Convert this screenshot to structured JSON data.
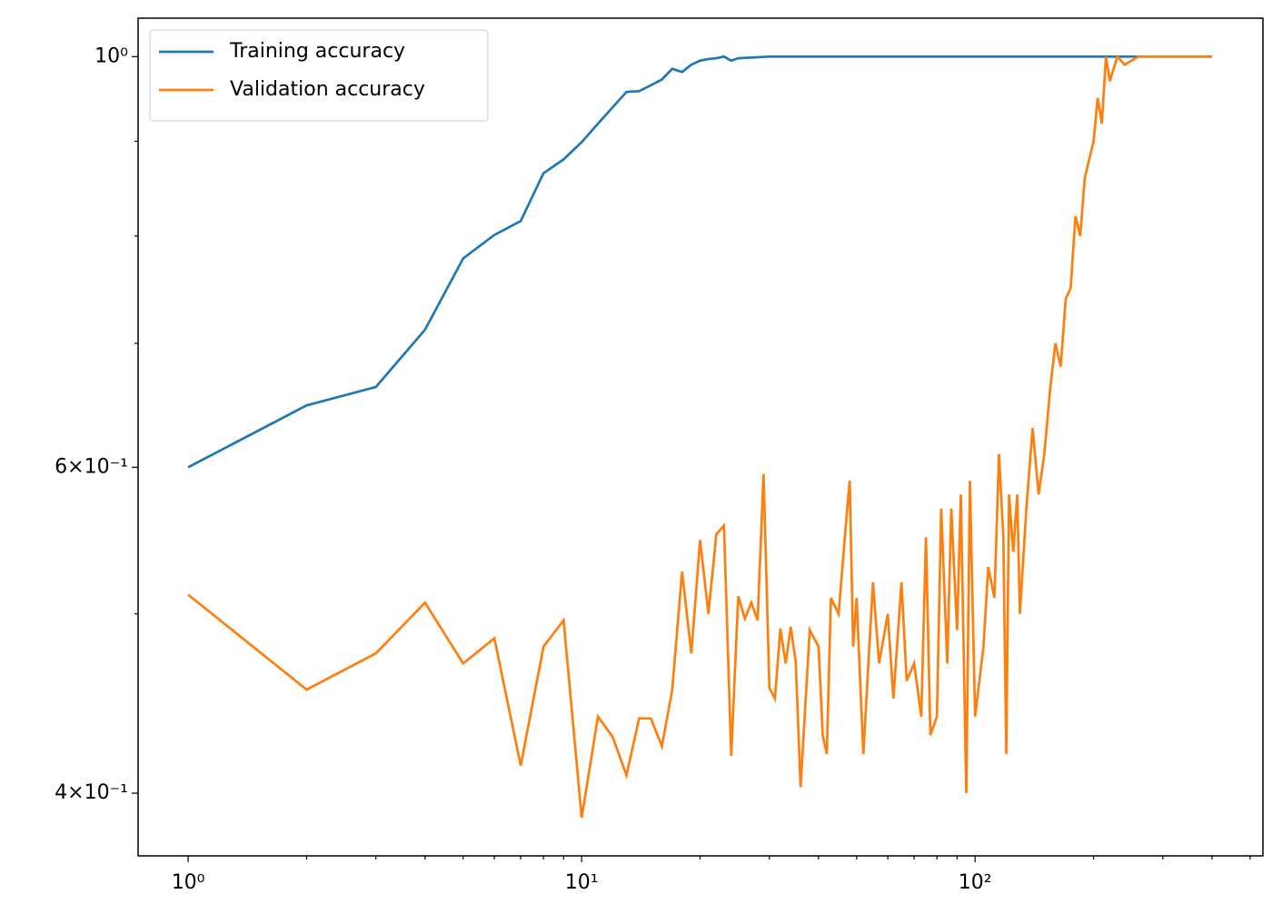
{
  "chart_data": {
    "type": "line",
    "log_x": true,
    "log_y": true,
    "legend": "upper left",
    "xlim": [
      0.746,
      539
    ],
    "ylim": [
      0.37,
      1.049
    ],
    "xticks": [
      {
        "value": 1,
        "label": "10⁰"
      },
      {
        "value": 10,
        "label": "10¹"
      },
      {
        "value": 100,
        "label": "10²"
      }
    ],
    "xminorticks": [
      2,
      3,
      4,
      5,
      6,
      7,
      8,
      9,
      20,
      30,
      40,
      50,
      60,
      70,
      80,
      90,
      200,
      300,
      400,
      500
    ],
    "yticks": [
      {
        "value": 0.4,
        "label": "4×10⁻¹"
      },
      {
        "value": 0.6,
        "label": "6×10⁻¹"
      },
      {
        "value": 1,
        "label": "10⁰"
      }
    ],
    "yminorticks": [
      0.5,
      0.7,
      0.8,
      0.9
    ],
    "series": [
      {
        "name": "Training accuracy",
        "color": "#1f77b4",
        "x": [
          1,
          2,
          3,
          4,
          5,
          6,
          7,
          8,
          9,
          10,
          11,
          12,
          13,
          14,
          15,
          16,
          17,
          18,
          19,
          20,
          21,
          22,
          23,
          24,
          25,
          30,
          50,
          100,
          200,
          400
        ],
        "values": [
          0.6,
          0.648,
          0.663,
          0.712,
          0.778,
          0.801,
          0.815,
          0.865,
          0.88,
          0.899,
          0.92,
          0.939,
          0.957,
          0.958,
          0.965,
          0.972,
          0.985,
          0.981,
          0.99,
          0.995,
          0.997,
          0.998,
          1,
          0.995,
          0.998,
          1,
          1,
          1,
          1,
          1
        ]
      },
      {
        "name": "Validation accuracy",
        "color": "#ff7f0e",
        "x": [
          1,
          2,
          3,
          4,
          5,
          6,
          7,
          8,
          9,
          10,
          11,
          12,
          13,
          14,
          15,
          16,
          17,
          18,
          19,
          20,
          21,
          22,
          23,
          24,
          25,
          26,
          27,
          28,
          29,
          30,
          31,
          32,
          33,
          34,
          35,
          36,
          38,
          40,
          41,
          42,
          43,
          45,
          47,
          48,
          49,
          50,
          52,
          55,
          57,
          60,
          62,
          65,
          67,
          70,
          73,
          75,
          77,
          80,
          82,
          85,
          87,
          90,
          92,
          95,
          97,
          100,
          105,
          108,
          112,
          115,
          118,
          120,
          122,
          125,
          128,
          130,
          135,
          140,
          145,
          150,
          155,
          160,
          165,
          170,
          175,
          180,
          185,
          190,
          195,
          200,
          205,
          210,
          215,
          220,
          230,
          240,
          260,
          300,
          350,
          400
        ],
        "values": [
          0.512,
          0.455,
          0.476,
          0.507,
          0.47,
          0.485,
          0.414,
          0.48,
          0.496,
          0.388,
          0.44,
          0.429,
          0.409,
          0.439,
          0.439,
          0.424,
          0.455,
          0.527,
          0.476,
          0.548,
          0.5,
          0.552,
          0.558,
          0.419,
          0.511,
          0.497,
          0.507,
          0.496,
          0.595,
          0.456,
          0.45,
          0.491,
          0.47,
          0.492,
          0.471,
          0.403,
          0.49,
          0.48,
          0.43,
          0.42,
          0.51,
          0.5,
          0.56,
          0.59,
          0.48,
          0.51,
          0.42,
          0.52,
          0.47,
          0.5,
          0.45,
          0.52,
          0.46,
          0.47,
          0.44,
          0.55,
          0.43,
          0.44,
          0.57,
          0.47,
          0.57,
          0.49,
          0.58,
          0.4,
          0.59,
          0.44,
          0.48,
          0.53,
          0.51,
          0.61,
          0.55,
          0.42,
          0.58,
          0.54,
          0.58,
          0.5,
          0.57,
          0.63,
          0.58,
          0.61,
          0.66,
          0.7,
          0.68,
          0.74,
          0.75,
          0.82,
          0.8,
          0.86,
          0.88,
          0.9,
          0.95,
          0.92,
          1,
          0.97,
          1,
          0.99,
          1,
          1,
          1,
          1
        ]
      }
    ]
  }
}
